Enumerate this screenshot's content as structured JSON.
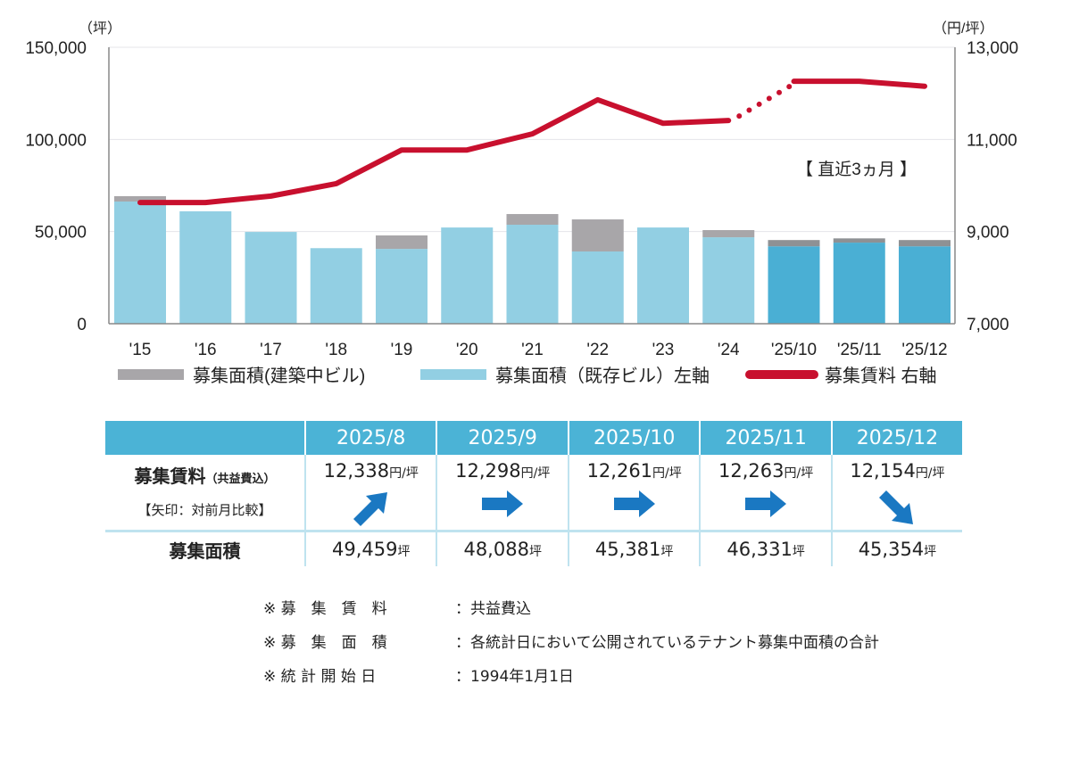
{
  "chart_data": {
    "type": "bar+line",
    "left_axis_unit": "（坪）",
    "right_axis_unit": "（円/坪）",
    "left_ticks": [
      "0",
      "50,000",
      "100,000",
      "150,000"
    ],
    "left_tick_values": [
      0,
      50000,
      100000,
      150000
    ],
    "right_ticks": [
      "7,000",
      "9,000",
      "11,000",
      "13,000"
    ],
    "right_tick_values": [
      7000,
      9000,
      11000,
      13000
    ],
    "ylim_left": [
      0,
      150000
    ],
    "ylim_right": [
      7000,
      13000
    ],
    "categories": [
      "'15",
      "'16",
      "'17",
      "'18",
      "'19",
      "'20",
      "'21",
      "'22",
      "'23",
      "'24",
      "'25/10",
      "'25/11",
      "'25/12"
    ],
    "recent_count": 3,
    "series": [
      {
        "name": "募集面積(建築中ビル)",
        "type": "bar",
        "stack": "top",
        "values": [
          2900,
          0,
          0,
          0,
          7300,
          0,
          5800,
          17400,
          0,
          3900,
          3400,
          2300,
          3400
        ],
        "color": "#a8a6a9",
        "recent_color": "#8e9194"
      },
      {
        "name": "募集面積（既存ビル）左軸",
        "type": "bar",
        "stack": "base",
        "values": [
          66300,
          61000,
          49800,
          41000,
          40600,
          52200,
          53700,
          39200,
          52200,
          46900,
          42000,
          44000,
          42000
        ],
        "color": "#92cfe3",
        "recent_color": "#4aafd4"
      },
      {
        "name": "募集賃料 右軸",
        "type": "line",
        "axis": "right",
        "values": [
          9630,
          9630,
          9770,
          10040,
          10770,
          10770,
          11120,
          11860,
          11350,
          11410,
          12261,
          12263,
          12154
        ],
        "dotted_segment": [
          9,
          10
        ],
        "color": "#c8102e"
      }
    ],
    "annotation": "【 直近3ヵ月 】",
    "grid": true,
    "legend_position": "bottom"
  },
  "table": {
    "headers": [
      "2025/8",
      "2025/9",
      "2025/10",
      "2025/11",
      "2025/12"
    ],
    "rent_label": "募集賃料",
    "rent_sub": "（共益費込）",
    "arrow_label": "【矢印：対前月比較】",
    "rent": [
      "12,338",
      "12,298",
      "12,261",
      "12,263",
      "12,154"
    ],
    "rent_unit": "円/坪",
    "arrows": [
      "up",
      "flat",
      "flat",
      "flat",
      "down"
    ],
    "area_label": "募集面積",
    "area": [
      "49,459",
      "48,088",
      "45,381",
      "46,331",
      "45,354"
    ],
    "area_unit": "坪",
    "arrow_color": "#1a78c2"
  },
  "notes": [
    {
      "key": "※ 募　集　賃　料",
      "value": "：共益費込"
    },
    {
      "key": "※ 募　集　面　積",
      "value": "：各統計日において公開されているテナント募集中面積の合計"
    },
    {
      "key": "※ 統 計 開 始 日",
      "value": "：1994年1月1日"
    }
  ]
}
